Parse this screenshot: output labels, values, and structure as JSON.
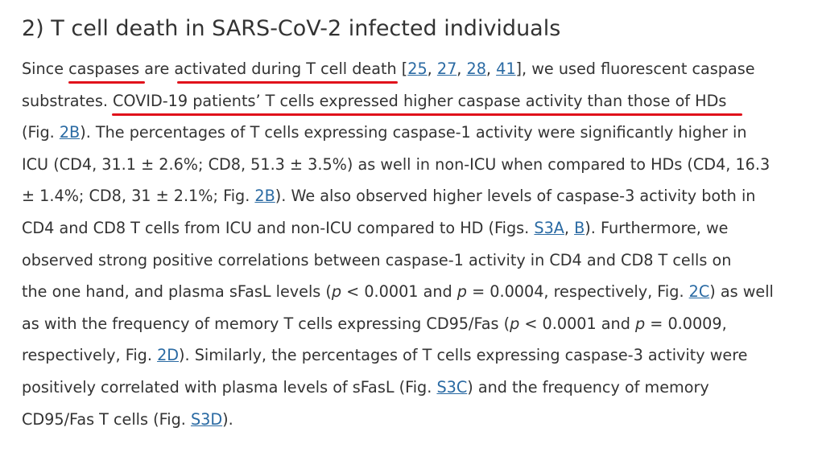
{
  "heading": "2) T cell death in SARS-CoV-2 infected individuals",
  "colors": {
    "text": "#333333",
    "link": "#2a6aa3",
    "underline_mark": "#e0121b"
  },
  "para": {
    "l1": {
      "t1": "Since ",
      "t2": "caspases",
      "t3": " are ",
      "t4": "activated during T cell death",
      "t5": " [",
      "r1": "25",
      "s1": ", ",
      "r2": "27",
      "s2": ", ",
      "r3": "28",
      "s3": ", ",
      "r4": "41",
      "t6": "], we used fluorescent caspase"
    },
    "l2": {
      "t1": "substrates. ",
      "t2": "COVID-19 patients’ T cells expressed higher caspase activity than those of HDs"
    },
    "l3": {
      "t1": "(Fig. ",
      "r1": "2B",
      "t2": "). The percentages of T cells expressing caspase-1 activity were significantly higher in"
    },
    "l4": {
      "t1": "ICU (CD4, 31.1 ± 2.6%; CD8, 51.3 ± 3.5%) as well in non-ICU when compared to HDs (CD4, 16.3"
    },
    "l5": {
      "t1": "± 1.4%; CD8, 31 ± 2.1%; Fig. ",
      "r1": "2B",
      "t2": "). We also observed higher levels of caspase-3 activity both in"
    },
    "l6": {
      "t1": "CD4 and CD8 T cells from ICU and non-ICU compared to HD (Figs. ",
      "r1": "S3A",
      "t2": ", ",
      "r2": "B",
      "t3": "). Furthermore, we"
    },
    "l7": {
      "t1": "observed strong positive correlations between caspase-1 activity in CD4 and CD8 T cells on"
    },
    "l8": {
      "t1": "the one hand, and plasma sFasL levels (",
      "p1": "p",
      "t2": " < 0.0001 and ",
      "p2": "p",
      "t3": " = 0.0004, respectively, Fig. ",
      "r1": "2C",
      "t4": ") as well"
    },
    "l9": {
      "t1": "as with the frequency of memory T cells expressing CD95/Fas (",
      "p1": "p",
      "t2": " < 0.0001 and ",
      "p2": "p",
      "t3": " = 0.0009,"
    },
    "l10": {
      "t1": "respectively, Fig. ",
      "r1": "2D",
      "t2": "). Similarly, the percentages of T cells expressing caspase-3 activity were"
    },
    "l11": {
      "t1": "positively correlated with plasma levels of sFasL (Fig. ",
      "r1": "S3C",
      "t2": ") and the frequency of memory"
    },
    "l12": {
      "t1": "CD95/Fas T cells (Fig. ",
      "r1": "S3D",
      "t2": ")."
    }
  }
}
